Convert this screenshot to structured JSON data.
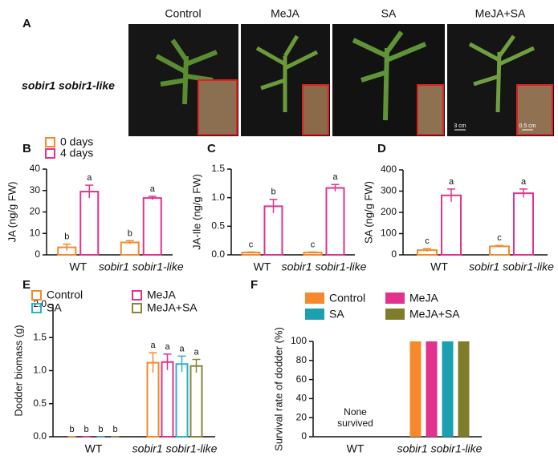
{
  "figure": {
    "panels": [
      "A",
      "B",
      "C",
      "D",
      "E",
      "F"
    ],
    "photo_labels": [
      "Control",
      "MeJA",
      "SA",
      "MeJA+SA"
    ],
    "genotype": "sobir1 sobir1-like",
    "scale_bars": [
      "3 cm",
      "0.5 cm"
    ]
  },
  "chart_data": [
    {
      "type": "bar",
      "bar_style": "outline",
      "ylabel": "JA (ng/g FW)",
      "categories": [
        "WT",
        "sobir1 sobir1-like"
      ],
      "ylim": [
        0,
        40
      ],
      "yticks": [
        0,
        10,
        20,
        30,
        40
      ],
      "series": [
        {
          "name": "0 days",
          "color": "#f5892b",
          "values": [
            3.5,
            5.8
          ],
          "errors": [
            1.5,
            0.8
          ],
          "letters": [
            "b",
            "b"
          ]
        },
        {
          "name": "4 days",
          "color": "#e2328e",
          "values": [
            29.5,
            26.5
          ],
          "errors": [
            3,
            0.8
          ],
          "letters": [
            "a",
            "a"
          ]
        }
      ]
    },
    {
      "type": "bar",
      "bar_style": "outline",
      "ylabel": "JA-Ile (ng/g FW)",
      "categories": [
        "WT",
        "sobir1 sobir1-like"
      ],
      "ylim": [
        0,
        1.5
      ],
      "yticks": [
        {
          "value": 0,
          "label": "0.0"
        },
        0.5,
        {
          "value": 1,
          "label": "1.0"
        },
        1.5
      ],
      "series": [
        {
          "name": "0 days",
          "color": "#f5892b",
          "values": [
            0.04,
            0.04
          ],
          "errors": [
            0.01,
            0.01
          ],
          "letters": [
            "c",
            "c"
          ]
        },
        {
          "name": "4 days",
          "color": "#e2328e",
          "values": [
            0.85,
            1.17
          ],
          "errors": [
            0.12,
            0.06
          ],
          "letters": [
            "b",
            "a"
          ]
        }
      ]
    },
    {
      "type": "bar",
      "bar_style": "outline",
      "ylabel": "SA (ng/g FW)",
      "categories": [
        "WT",
        "sobir1 sobir1-like"
      ],
      "ylim": [
        0,
        400
      ],
      "yticks": [
        0,
        100,
        200,
        300,
        400
      ],
      "series": [
        {
          "name": "0 days",
          "color": "#f5892b",
          "values": [
            22,
            40
          ],
          "errors": [
            7,
            4
          ],
          "letters": [
            "c",
            "c"
          ]
        },
        {
          "name": "4 days",
          "color": "#e2328e",
          "values": [
            280,
            290
          ],
          "errors": [
            30,
            20
          ],
          "letters": [
            "a",
            "a"
          ]
        }
      ]
    },
    {
      "type": "bar",
      "bar_style": "outline",
      "ylabel": "Dodder biomass (g)",
      "categories": [
        "WT",
        "sobir1 sobir1-like"
      ],
      "ylim": [
        0,
        2
      ],
      "yticks": [
        {
          "value": 0,
          "label": "0.0"
        },
        0.5,
        {
          "value": 1,
          "label": "1.0"
        },
        1.5,
        {
          "value": 2,
          "label": "2.0"
        }
      ],
      "series": [
        {
          "name": "Control",
          "color": "#f5892b",
          "values": [
            0,
            1.12
          ],
          "errors": [
            0,
            0.15
          ],
          "letters": [
            "b",
            "a"
          ]
        },
        {
          "name": "MeJA",
          "color": "#e2328e",
          "values": [
            0,
            1.13
          ],
          "errors": [
            0,
            0.12
          ],
          "letters": [
            "b",
            "a"
          ]
        },
        {
          "name": "SA",
          "color": "#2cb0cc",
          "values": [
            0,
            1.1
          ],
          "errors": [
            0,
            0.12
          ],
          "letters": [
            "b",
            "a"
          ]
        },
        {
          "name": "MeJA+SA",
          "color": "#87863a",
          "values": [
            0,
            1.07
          ],
          "errors": [
            0,
            0.1
          ],
          "letters": [
            "b",
            "a"
          ]
        }
      ]
    },
    {
      "type": "bar",
      "bar_style": "solid",
      "ylabel": "Survival rate of dodder (%)",
      "categories": [
        "WT",
        "sobir1 sobir1-like"
      ],
      "ylim": [
        0,
        100
      ],
      "yticks": [
        0,
        20,
        40,
        60,
        80,
        100
      ],
      "annotation_lines": [
        "None",
        "survived"
      ],
      "series": [
        {
          "name": "Control",
          "color": "#f5892b",
          "values": [
            0,
            100
          ]
        },
        {
          "name": "MeJA",
          "color": "#e2328e",
          "values": [
            0,
            100
          ]
        },
        {
          "name": "SA",
          "color": "#1aa0b0",
          "values": [
            0,
            100
          ]
        },
        {
          "name": "MeJA+SA",
          "color": "#7f7d2a",
          "values": [
            0,
            100
          ]
        }
      ]
    }
  ]
}
